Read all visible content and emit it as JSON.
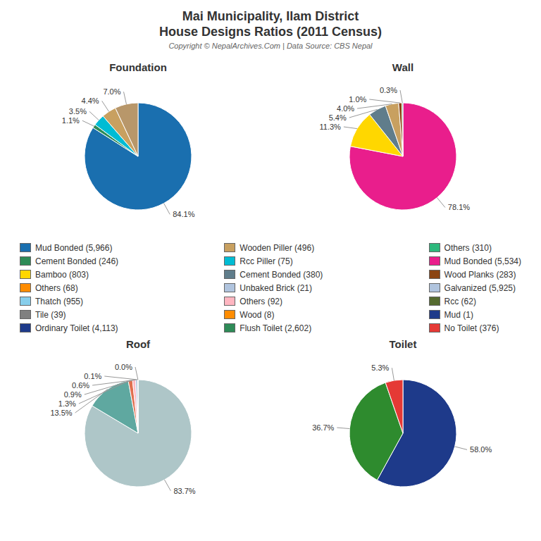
{
  "title": "Mai Municipality, Ilam District",
  "subtitle": "House Designs Ratios (2011 Census)",
  "annotations": [
    "Copyright © NepalArchives.Com | Data Source: CBS Nepal"
  ],
  "series": [
    {
      "name": "Mud Bonded (5,966)",
      "color": "#1a6faf"
    },
    {
      "name": "Cement Bonded (246)",
      "color": "#2e8b57"
    },
    {
      "name": "Bamboo (803)",
      "color": "#ffd700"
    },
    {
      "name": "Others (68)",
      "color": "#ff8c00"
    },
    {
      "name": "Thatch (955)",
      "color": "#87ceeb"
    },
    {
      "name": "Tile (39)",
      "color": "#808080"
    },
    {
      "name": "Ordinary Toilet (4,113)",
      "color": "#1e3a8a"
    },
    {
      "name": "Wooden Piller (496)",
      "color": "#c8a060"
    },
    {
      "name": "Rcc Piller (75)",
      "color": "#00bcd4"
    },
    {
      "name": "Cement Bonded (380)",
      "color": "#607d8b"
    },
    {
      "name": "Unbaked Brick (21)",
      "color": "#b0c4de"
    },
    {
      "name": "Others (92)",
      "color": "#ffb6c1"
    },
    {
      "name": "Wood (8)",
      "color": "#ff8c00"
    },
    {
      "name": "Flush Toilet (2,602)",
      "color": "#2e8b57"
    },
    {
      "name": "Others (310)",
      "color": "#2db87c"
    },
    {
      "name": "Mud Bonded (5,534)",
      "color": "#e91e8c"
    },
    {
      "name": "Wood Planks (283)",
      "color": "#8b4513"
    },
    {
      "name": "Galvanized (5,925)",
      "color": "#b0c4de"
    },
    {
      "name": "Rcc (62)",
      "color": "#556b2f"
    },
    {
      "name": "Mud (1)",
      "color": "#1e3a8a"
    },
    {
      "name": "No Toilet (376)",
      "color": "#e53935"
    }
  ],
  "chart_data": [
    {
      "type": "pie",
      "title": "Foundation",
      "values": [
        84.1,
        1.1,
        3.5,
        4.4,
        7.0
      ],
      "value_labels": [
        "84.1%",
        "1.1%",
        "3.5%",
        "4.4%",
        "7.0%"
      ],
      "colors": [
        "#1a6faf",
        "#2e8b57",
        "#00bcd4",
        "#c8a060",
        "#b8976a"
      ],
      "data_labels": true
    },
    {
      "type": "pie",
      "title": "Wall",
      "values": [
        78.1,
        11.3,
        5.4,
        4.0,
        1.0,
        0.3
      ],
      "value_labels": [
        "78.1%",
        "11.3%",
        "5.4%",
        "4.0%",
        "1.0%",
        "0.3%"
      ],
      "colors": [
        "#e91e8c",
        "#ffd700",
        "#607d8b",
        "#c8a060",
        "#8b4513",
        "#2db87c"
      ],
      "data_labels": true
    },
    {
      "type": "pie",
      "title": "Roof",
      "values": [
        83.7,
        13.5,
        1.3,
        0.9,
        0.6,
        0.1,
        0.05
      ],
      "value_labels": [
        "83.7%",
        "13.5%",
        "1.3%",
        "0.9%",
        "0.6%",
        "0.1%",
        "0.0%"
      ],
      "colors": [
        "#aec6c8",
        "#5fa8a0",
        "#e07050",
        "#ffb6c1",
        "#b0c4de",
        "#2e8b57",
        "#c8a060"
      ],
      "data_labels": true
    },
    {
      "type": "pie",
      "title": "Toilet",
      "values": [
        58.0,
        36.7,
        5.3
      ],
      "value_labels": [
        "58.0%",
        "36.7%",
        "5.3%"
      ],
      "colors": [
        "#1e3a8a",
        "#2e8b2e",
        "#e53935"
      ],
      "data_labels": true
    }
  ]
}
